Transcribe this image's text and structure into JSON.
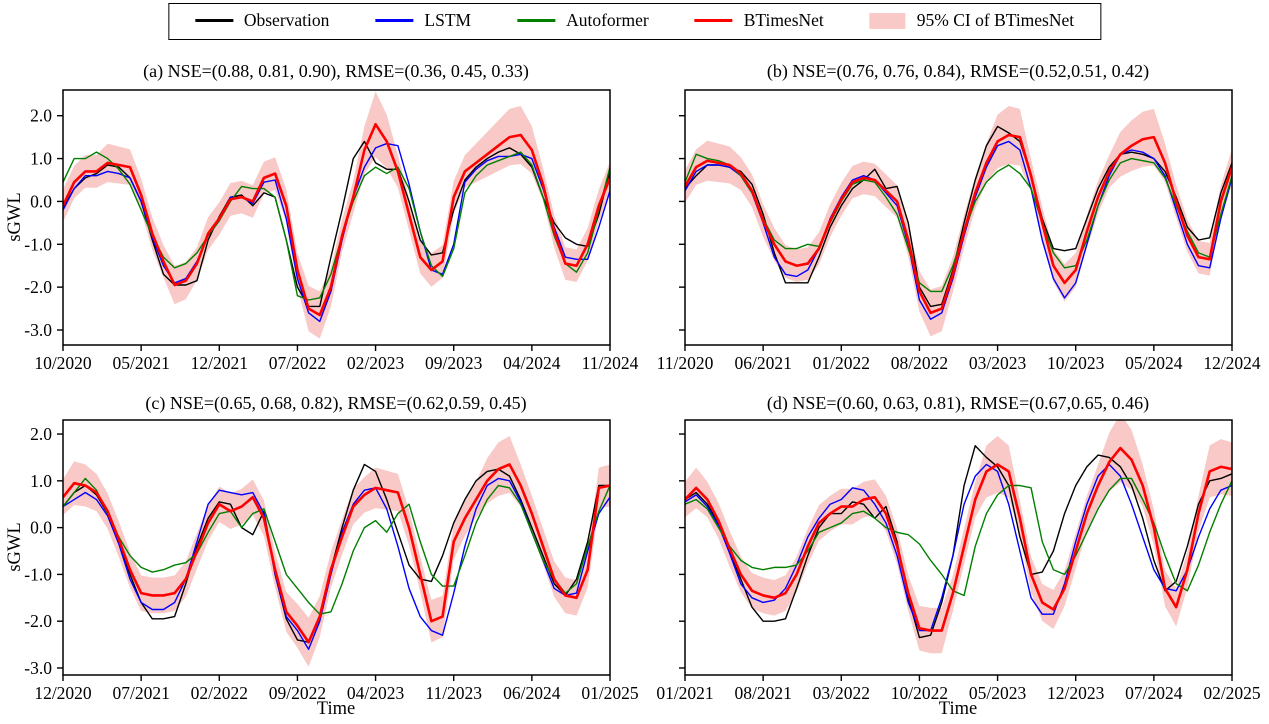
{
  "figure": {
    "ylabel": "sGWL",
    "xlabel": "Time",
    "yticks": {
      "values": [
        2,
        1,
        0,
        -1,
        -2,
        -3
      ],
      "labels": [
        "2.0",
        "1.0",
        "0.0",
        "-1.0",
        "-2.0",
        "-3.0"
      ]
    }
  },
  "colors": {
    "observation": "#000000",
    "lstm": "#0000ff",
    "autoformer": "#007f00",
    "btimesnet": "#ff0000",
    "ci_fill": "#f8c9c6",
    "axis": "#000000"
  },
  "legend": {
    "items": [
      {
        "label": "Observation",
        "swatch": "line",
        "color": "#000000"
      },
      {
        "label": "LSTM",
        "swatch": "line",
        "color": "#0000ff"
      },
      {
        "label": "Autoformer",
        "swatch": "line",
        "color": "#007f00"
      },
      {
        "label": "BTimesNet",
        "swatch": "line",
        "color": "#ff0000"
      },
      {
        "label": "95% CI of BTimesNet",
        "swatch": "patch",
        "color": "#f8c9c6"
      }
    ]
  },
  "ci_rule": {
    "base": 0.38,
    "peak_gain": 0.35,
    "peak_threshold": 0.7,
    "trough_gain": 0.15,
    "trough_threshold": 1.5
  },
  "chart_data": [
    {
      "id": "a",
      "type": "line",
      "title": "(a) NSE=(0.88, 0.81, 0.90), RMSE=(0.36, 0.45, 0.33)",
      "x_ticks": [
        "10/2020",
        "05/2021",
        "12/2021",
        "07/2022",
        "02/2023",
        "09/2023",
        "04/2024",
        "11/2024"
      ],
      "ylim": [
        -3.35,
        2.6
      ],
      "show_y_labels": true,
      "series": [
        {
          "name": "Observation",
          "color": "#000000",
          "width": 1.4,
          "values": [
            -0.15,
            0.3,
            0.55,
            0.65,
            0.85,
            0.8,
            0.55,
            0.0,
            -0.9,
            -1.7,
            -1.95,
            -1.95,
            -1.85,
            -0.9,
            -0.35,
            0.1,
            0.15,
            -0.1,
            0.2,
            0.1,
            -0.9,
            -2.0,
            -2.45,
            -2.45,
            -1.3,
            -0.2,
            1.0,
            1.4,
            0.9,
            0.75,
            0.75,
            0.0,
            -0.9,
            -1.25,
            -1.2,
            -0.2,
            0.5,
            0.8,
            1.0,
            1.15,
            1.25,
            1.1,
            0.8,
            0.1,
            -0.5,
            -0.85,
            -1.0,
            -1.05,
            -0.3,
            0.7
          ]
        },
        {
          "name": "LSTM",
          "color": "#0000ff",
          "width": 1.4,
          "values": [
            -0.2,
            0.3,
            0.6,
            0.6,
            0.7,
            0.65,
            0.55,
            0.0,
            -0.85,
            -1.5,
            -1.9,
            -1.8,
            -1.4,
            -0.8,
            -0.45,
            0.1,
            0.1,
            -0.05,
            0.45,
            0.5,
            -0.4,
            -1.8,
            -2.6,
            -2.8,
            -2.1,
            -0.9,
            0.1,
            0.8,
            1.25,
            1.35,
            1.3,
            0.4,
            -0.7,
            -1.6,
            -1.7,
            -1.0,
            0.45,
            0.75,
            0.95,
            1.05,
            1.05,
            1.1,
            1.0,
            0.3,
            -0.6,
            -1.3,
            -1.35,
            -1.35,
            -0.6,
            0.25
          ]
        },
        {
          "name": "Autoformer",
          "color": "#007f00",
          "width": 1.4,
          "values": [
            0.45,
            1.0,
            1.0,
            1.15,
            1.0,
            0.75,
            0.4,
            -0.2,
            -0.8,
            -1.3,
            -1.55,
            -1.45,
            -1.2,
            -0.8,
            -0.45,
            0.0,
            0.35,
            0.3,
            0.3,
            0.1,
            -0.9,
            -2.2,
            -2.3,
            -2.25,
            -1.7,
            -0.8,
            0.0,
            0.6,
            0.8,
            0.65,
            0.8,
            0.3,
            -0.7,
            -1.5,
            -1.75,
            -1.1,
            0.2,
            0.6,
            0.85,
            0.95,
            1.05,
            1.15,
            0.85,
            0.1,
            -0.8,
            -1.45,
            -1.65,
            -1.2,
            -0.2,
            0.8
          ]
        },
        {
          "name": "BTimesNet",
          "color": "#ff0000",
          "width": 2.6,
          "ci": true,
          "values": [
            -0.1,
            0.45,
            0.7,
            0.7,
            0.9,
            0.85,
            0.8,
            0.15,
            -0.75,
            -1.4,
            -1.95,
            -1.85,
            -1.45,
            -0.75,
            -0.4,
            0.05,
            0.1,
            0.0,
            0.55,
            0.65,
            -0.1,
            -1.6,
            -2.5,
            -2.65,
            -2.0,
            -0.8,
            0.1,
            1.2,
            1.8,
            1.4,
            0.7,
            -0.3,
            -1.3,
            -1.6,
            -1.4,
            0.1,
            0.7,
            0.9,
            1.1,
            1.3,
            1.5,
            1.55,
            1.2,
            0.4,
            -0.7,
            -1.45,
            -1.5,
            -1.0,
            -0.1,
            0.55
          ]
        }
      ]
    },
    {
      "id": "b",
      "type": "line",
      "title": "(b) NSE=(0.76, 0.76, 0.84), RMSE=(0.52,0.51, 0.42)",
      "x_ticks": [
        "11/2020",
        "06/2021",
        "01/2022",
        "08/2022",
        "03/2023",
        "10/2023",
        "05/2024",
        "12/2024"
      ],
      "ylim": [
        -3.35,
        2.6
      ],
      "show_y_labels": false,
      "series": [
        {
          "name": "Observation",
          "color": "#000000",
          "width": 1.4,
          "values": [
            0.3,
            0.6,
            0.85,
            0.85,
            0.8,
            0.7,
            0.4,
            -0.3,
            -1.2,
            -1.9,
            -1.9,
            -1.9,
            -1.3,
            -0.6,
            -0.1,
            0.3,
            0.5,
            0.75,
            0.3,
            0.35,
            -0.5,
            -2.0,
            -2.45,
            -2.4,
            -1.6,
            -0.5,
            0.5,
            1.3,
            1.75,
            1.6,
            1.4,
            0.6,
            -0.4,
            -1.1,
            -1.15,
            -1.1,
            -0.4,
            0.3,
            0.8,
            1.1,
            1.15,
            1.1,
            1.0,
            0.7,
            0.1,
            -0.6,
            -0.9,
            -0.85,
            0.2,
            0.9
          ]
        },
        {
          "name": "LSTM",
          "color": "#0000ff",
          "width": 1.4,
          "values": [
            0.25,
            0.7,
            0.85,
            0.85,
            0.8,
            0.6,
            0.2,
            -0.5,
            -1.3,
            -1.7,
            -1.75,
            -1.6,
            -1.1,
            -0.4,
            0.1,
            0.5,
            0.6,
            0.5,
            0.2,
            -0.1,
            -1.0,
            -2.3,
            -2.75,
            -2.6,
            -1.8,
            -0.8,
            0.1,
            0.8,
            1.3,
            1.4,
            1.2,
            0.3,
            -0.9,
            -1.8,
            -2.25,
            -1.9,
            -1.0,
            -0.1,
            0.6,
            1.1,
            1.2,
            1.15,
            1.0,
            0.6,
            -0.2,
            -1.0,
            -1.5,
            -1.55,
            -0.4,
            0.55
          ]
        },
        {
          "name": "Autoformer",
          "color": "#007f00",
          "width": 1.4,
          "values": [
            0.45,
            1.1,
            1.0,
            0.95,
            0.85,
            0.6,
            0.2,
            -0.4,
            -0.9,
            -1.1,
            -1.1,
            -1.0,
            -1.05,
            -0.5,
            0.0,
            0.4,
            0.5,
            0.45,
            0.1,
            -0.3,
            -1.1,
            -1.9,
            -2.1,
            -2.1,
            -1.5,
            -0.7,
            0.0,
            0.45,
            0.7,
            0.85,
            0.65,
            0.3,
            -0.5,
            -1.2,
            -1.55,
            -1.5,
            -0.9,
            -0.1,
            0.5,
            0.9,
            1.0,
            0.95,
            0.9,
            0.55,
            -0.1,
            -0.7,
            -1.2,
            -1.3,
            -0.3,
            0.6
          ]
        },
        {
          "name": "BTimesNet",
          "color": "#ff0000",
          "width": 2.6,
          "ci": true,
          "values": [
            0.35,
            0.8,
            0.95,
            0.9,
            0.85,
            0.65,
            0.25,
            -0.45,
            -1.0,
            -1.4,
            -1.5,
            -1.45,
            -1.1,
            -0.45,
            0.05,
            0.45,
            0.55,
            0.5,
            0.25,
            0.0,
            -0.9,
            -2.1,
            -2.6,
            -2.5,
            -1.7,
            -0.7,
            0.2,
            0.9,
            1.4,
            1.55,
            1.5,
            0.6,
            -0.5,
            -1.5,
            -1.9,
            -1.6,
            -0.7,
            0.1,
            0.7,
            1.1,
            1.3,
            1.45,
            1.5,
            0.9,
            0.0,
            -0.8,
            -1.3,
            -1.35,
            0.0,
            0.8
          ]
        }
      ]
    },
    {
      "id": "c",
      "type": "line",
      "title": "(c) NSE=(0.65, 0.68, 0.82), RMSE=(0.62,0.59, 0.45)",
      "x_ticks": [
        "12/2020",
        "07/2021",
        "02/2022",
        "09/2022",
        "04/2023",
        "11/2023",
        "06/2024",
        "01/2025"
      ],
      "ylim": [
        -3.15,
        2.3
      ],
      "show_y_labels": true,
      "series": [
        {
          "name": "Observation",
          "color": "#000000",
          "width": 1.4,
          "values": [
            0.45,
            0.75,
            0.9,
            0.7,
            0.3,
            -0.3,
            -1.0,
            -1.6,
            -1.95,
            -1.95,
            -1.9,
            -1.2,
            -0.4,
            0.2,
            0.55,
            0.5,
            0.0,
            -0.15,
            0.35,
            -1.0,
            -1.95,
            -2.4,
            -2.45,
            -1.9,
            -0.9,
            0.0,
            0.8,
            1.35,
            1.2,
            0.6,
            -0.1,
            -0.8,
            -1.1,
            -1.15,
            -0.6,
            0.1,
            0.6,
            1.0,
            1.2,
            1.25,
            1.1,
            0.6,
            0.0,
            -0.6,
            -1.2,
            -1.45,
            -1.1,
            -0.3,
            0.9,
            0.9
          ]
        },
        {
          "name": "LSTM",
          "color": "#0000ff",
          "width": 1.4,
          "values": [
            0.45,
            0.6,
            0.75,
            0.6,
            0.25,
            -0.35,
            -1.1,
            -1.6,
            -1.75,
            -1.75,
            -1.6,
            -1.1,
            -0.3,
            0.5,
            0.8,
            0.75,
            0.7,
            0.75,
            0.3,
            -1.0,
            -1.9,
            -2.2,
            -2.6,
            -2.0,
            -1.0,
            -0.1,
            0.5,
            0.8,
            0.85,
            0.4,
            -0.4,
            -1.3,
            -1.9,
            -2.2,
            -2.3,
            -1.4,
            -0.4,
            0.4,
            0.9,
            1.05,
            1.0,
            0.55,
            -0.1,
            -0.7,
            -1.3,
            -1.45,
            -1.4,
            -0.5,
            0.3,
            0.65
          ]
        },
        {
          "name": "Autoformer",
          "color": "#007f00",
          "width": 1.4,
          "values": [
            0.45,
            0.75,
            1.05,
            0.8,
            0.3,
            -0.2,
            -0.6,
            -0.85,
            -0.95,
            -0.9,
            -0.8,
            -0.75,
            -0.55,
            -0.1,
            0.3,
            0.35,
            0.0,
            0.3,
            0.4,
            -0.3,
            -1.0,
            -1.3,
            -1.6,
            -1.85,
            -1.8,
            -1.2,
            -0.5,
            0.0,
            0.15,
            -0.1,
            0.3,
            0.5,
            -0.3,
            -1.0,
            -1.25,
            -1.25,
            -0.6,
            0.1,
            0.6,
            0.9,
            0.85,
            0.5,
            -0.1,
            -0.7,
            -1.1,
            -1.4,
            -1.2,
            -0.4,
            0.35,
            0.9
          ]
        },
        {
          "name": "BTimesNet",
          "color": "#ff0000",
          "width": 2.6,
          "ci": true,
          "values": [
            0.65,
            0.95,
            0.9,
            0.75,
            0.35,
            -0.25,
            -0.9,
            -1.4,
            -1.45,
            -1.45,
            -1.4,
            -1.1,
            -0.5,
            0.1,
            0.5,
            0.35,
            0.45,
            0.65,
            0.2,
            -0.9,
            -1.8,
            -2.1,
            -2.45,
            -1.9,
            -0.9,
            -0.2,
            0.45,
            0.7,
            0.85,
            0.8,
            0.75,
            0.0,
            -1.0,
            -2.0,
            -1.9,
            -0.3,
            0.2,
            0.6,
            1.0,
            1.25,
            1.35,
            0.9,
            0.3,
            -0.4,
            -1.1,
            -1.45,
            -1.5,
            -0.9,
            0.85,
            0.9
          ]
        }
      ]
    },
    {
      "id": "d",
      "type": "line",
      "title": "(d) NSE=(0.60, 0.63, 0.81), RMSE=(0.67,0.65, 0.46)",
      "x_ticks": [
        "01/2021",
        "08/2021",
        "03/2022",
        "10/2022",
        "05/2023",
        "12/2023",
        "07/2024",
        "02/2025"
      ],
      "ylim": [
        -3.15,
        2.3
      ],
      "show_y_labels": false,
      "series": [
        {
          "name": "Observation",
          "color": "#000000",
          "width": 1.4,
          "values": [
            0.6,
            0.75,
            0.5,
            0.1,
            -0.5,
            -1.1,
            -1.7,
            -2.0,
            -2.0,
            -1.95,
            -1.3,
            -0.6,
            0.0,
            0.3,
            0.3,
            0.55,
            0.5,
            0.2,
            0.45,
            -0.3,
            -1.5,
            -2.35,
            -2.3,
            -1.6,
            -0.6,
            0.9,
            1.75,
            1.5,
            1.3,
            0.9,
            -0.2,
            -1.0,
            -0.95,
            -0.5,
            0.3,
            0.9,
            1.3,
            1.55,
            1.5,
            1.3,
            0.9,
            0.2,
            -0.7,
            -1.35,
            -1.15,
            -0.4,
            0.5,
            1.0,
            1.05,
            1.15
          ]
        },
        {
          "name": "LSTM",
          "color": "#0000ff",
          "width": 1.4,
          "values": [
            0.55,
            0.7,
            0.45,
            0.05,
            -0.55,
            -1.2,
            -1.5,
            -1.6,
            -1.55,
            -1.3,
            -0.8,
            -0.2,
            0.2,
            0.5,
            0.6,
            0.85,
            0.8,
            0.5,
            0.1,
            -0.6,
            -1.6,
            -2.2,
            -2.2,
            -1.5,
            -0.6,
            0.5,
            1.1,
            1.35,
            1.2,
            0.5,
            -0.5,
            -1.5,
            -1.85,
            -1.85,
            -1.2,
            -0.3,
            0.5,
            1.1,
            1.35,
            1.1,
            0.5,
            -0.2,
            -0.9,
            -1.3,
            -1.35,
            -0.9,
            -0.2,
            0.4,
            0.8,
            0.9
          ]
        },
        {
          "name": "Autoformer",
          "color": "#007f00",
          "width": 1.4,
          "values": [
            0.5,
            0.6,
            0.4,
            0.0,
            -0.4,
            -0.7,
            -0.85,
            -0.9,
            -0.85,
            -0.85,
            -0.8,
            -0.5,
            -0.1,
            0.0,
            0.1,
            0.3,
            0.35,
            0.2,
            0.0,
            -0.1,
            -0.15,
            -0.35,
            -0.7,
            -1.0,
            -1.35,
            -1.45,
            -0.4,
            0.3,
            0.7,
            0.9,
            0.9,
            0.85,
            -0.3,
            -0.9,
            -1.0,
            -0.6,
            -0.1,
            0.4,
            0.8,
            1.05,
            1.05,
            0.6,
            0.1,
            -0.6,
            -1.2,
            -1.35,
            -0.8,
            -0.1,
            0.5,
            1.0
          ]
        },
        {
          "name": "BTimesNet",
          "color": "#ff0000",
          "width": 2.6,
          "ci": true,
          "values": [
            0.6,
            0.85,
            0.6,
            0.15,
            -0.45,
            -1.0,
            -1.35,
            -1.45,
            -1.5,
            -1.4,
            -1.0,
            -0.4,
            0.1,
            0.3,
            0.45,
            0.45,
            0.6,
            0.65,
            0.3,
            -0.4,
            -1.4,
            -2.15,
            -2.2,
            -2.2,
            -1.4,
            -0.4,
            0.6,
            1.2,
            1.35,
            1.2,
            0.2,
            -1.0,
            -1.6,
            -1.75,
            -1.3,
            -0.5,
            0.3,
            0.9,
            1.4,
            1.7,
            1.45,
            0.9,
            0.0,
            -1.3,
            -1.7,
            -0.9,
            0.3,
            1.2,
            1.3,
            1.25
          ]
        }
      ]
    }
  ]
}
